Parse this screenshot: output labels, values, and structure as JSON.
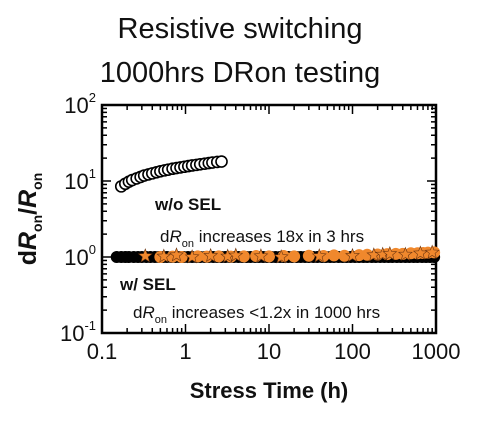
{
  "title_line1": "Resistive switching",
  "title_line2": "1000hrs DRon testing",
  "chart_data": {
    "type": "scatter",
    "x_scale": "log",
    "y_scale": "log",
    "xlim": [
      0.1,
      1000
    ],
    "ylim": [
      0.1,
      100
    ],
    "xlabel": "Stress Time (h)",
    "ylabel": {
      "d": "d",
      "R1": "R",
      "sub1": "on",
      "slash": "/",
      "R2": "R",
      "sub2": "on"
    },
    "x_ticks": [
      "0.1",
      "1",
      "10",
      "100",
      "1000"
    ],
    "y_ticks": [
      {
        "base": "10",
        "exp": "-1"
      },
      {
        "base": "10",
        "exp": "0"
      },
      {
        "base": "10",
        "exp": "1"
      },
      {
        "base": "10",
        "exp": "2"
      }
    ],
    "annotations": {
      "wo_sel_label": "w/o SEL",
      "wo_sel_text": {
        "d": "d",
        "R": "R",
        "sub": "on",
        "rest": " increases 18x in 3 hrs"
      },
      "w_sel_label": "w/ SEL",
      "w_sel_text": {
        "d": "d",
        "R": "R",
        "sub": "on",
        "rest": " increases <1.2x in 1000 hrs"
      }
    },
    "series": [
      {
        "marker": "open-circle",
        "color": "#000000",
        "x": [
          0.17,
          0.19,
          0.21,
          0.23,
          0.26,
          0.29,
          0.32,
          0.36,
          0.4,
          0.45,
          0.5,
          0.56,
          0.62,
          0.7,
          0.78,
          0.87,
          0.97,
          1.08,
          1.2,
          1.35,
          1.5,
          1.7,
          1.9,
          2.1,
          2.4,
          2.7
        ],
        "y": [
          8.5,
          9.2,
          9.8,
          10.3,
          10.8,
          11.3,
          11.8,
          12.2,
          12.6,
          13.0,
          13.4,
          13.8,
          14.1,
          14.5,
          14.8,
          15.1,
          15.4,
          15.7,
          16.0,
          16.3,
          16.6,
          16.9,
          17.2,
          17.5,
          17.8,
          18.0
        ]
      },
      {
        "marker": "filled-circle",
        "color": "#000000",
        "x": [
          0.15,
          0.17,
          0.19,
          0.21,
          0.24,
          0.27,
          0.3,
          0.34,
          0.38,
          0.43,
          0.48,
          0.54,
          0.6,
          0.68,
          0.76,
          0.85,
          0.95,
          1.07,
          1.2,
          1.35,
          1.5,
          1.7,
          1.9,
          2.15,
          2.4,
          2.7,
          3.0,
          3.4,
          3.8,
          4.3,
          4.8,
          5.4,
          6.0,
          6.8,
          7.6,
          8.5,
          9.5,
          10.7,
          12,
          13.5,
          15,
          17,
          19,
          21.5,
          24,
          27,
          30,
          34,
          38,
          43,
          48,
          54,
          60,
          68,
          76,
          85,
          95,
          107,
          120,
          135,
          150,
          170,
          190,
          215,
          240,
          270,
          300,
          340,
          380,
          430,
          480,
          540,
          600,
          680,
          760,
          850,
          950
        ],
        "y": [
          1.0,
          1.0,
          1.0,
          1.0,
          1.0,
          1.0,
          1.0,
          1.0,
          1.0,
          1.0,
          1.0,
          1.0,
          1.0,
          1.0,
          1.0,
          1.0,
          1.0,
          1.0,
          1.0,
          1.0,
          1.0,
          1.0,
          1.0,
          1.0,
          1.0,
          1.0,
          1.0,
          1.0,
          1.0,
          1.0,
          1.0,
          1.0,
          1.0,
          1.0,
          1.0,
          1.0,
          1.0,
          1.0,
          1.0,
          1.0,
          1.0,
          1.0,
          1.0,
          1.0,
          1.0,
          1.0,
          1.0,
          1.0,
          1.0,
          1.0,
          1.0,
          1.0,
          1.0,
          1.0,
          1.0,
          1.0,
          1.0,
          1.0,
          1.0,
          1.0,
          1.0,
          1.0,
          1.0,
          1.0,
          1.0,
          1.0,
          1.0,
          1.0,
          1.0,
          1.0,
          1.0,
          1.0,
          1.0,
          1.0,
          1.0,
          1.0,
          1.0
        ]
      },
      {
        "marker": "star",
        "color": "#f0882d",
        "x": [
          0.33,
          0.55,
          0.78,
          1.2,
          2.0,
          3.2,
          4.0,
          8.0,
          14,
          40,
          100,
          180,
          230,
          280,
          430,
          650,
          900
        ],
        "y": [
          1.03,
          1.02,
          1.06,
          1.0,
          1.04,
          1.02,
          1.05,
          1.03,
          1.0,
          1.03,
          1.04,
          1.06,
          1.08,
          1.1,
          1.08,
          1.12,
          1.15
        ]
      },
      {
        "marker": "filled-circle",
        "color": "#f0882d",
        "x": [
          0.5,
          0.7,
          0.9,
          1.4,
          1.8,
          2.5,
          3.5,
          5,
          7,
          10,
          15,
          20,
          30,
          45,
          60,
          80,
          120,
          150,
          200,
          260,
          330,
          400,
          500,
          600,
          700,
          800,
          950
        ],
        "y": [
          1.0,
          1.01,
          1.0,
          1.02,
          1.01,
          1.02,
          1.01,
          1.02,
          1.03,
          1.02,
          1.03,
          1.02,
          1.04,
          1.03,
          1.05,
          1.04,
          1.06,
          1.07,
          1.08,
          1.09,
          1.1,
          1.1,
          1.12,
          1.12,
          1.13,
          1.14,
          1.15
        ]
      }
    ]
  }
}
